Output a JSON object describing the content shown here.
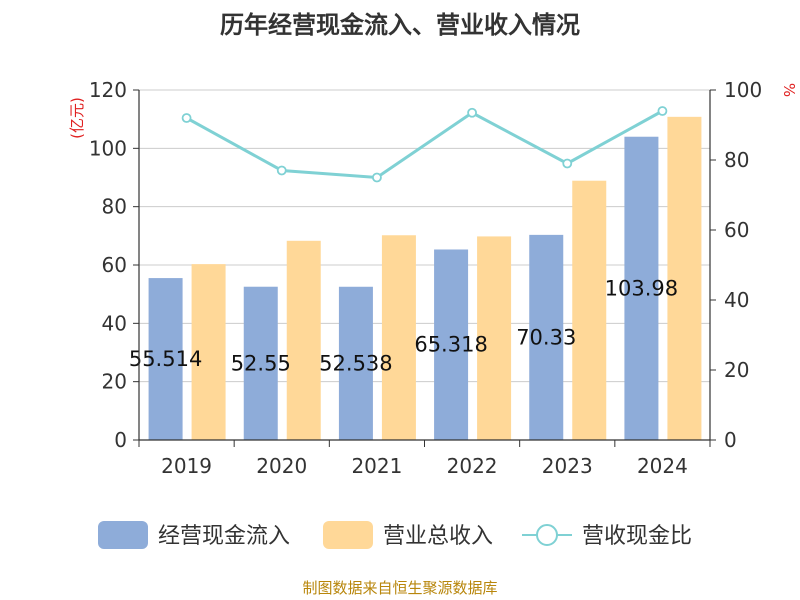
{
  "chart_data": {
    "type": "bar",
    "title": "历年经营现金流入、营业收入情况",
    "categories": [
      "2019",
      "2020",
      "2021",
      "2022",
      "2023",
      "2024"
    ],
    "series": [
      {
        "name": "经营现金流入",
        "kind": "bar",
        "axis": "left",
        "color": "#8eacd9",
        "values": [
          55.514,
          52.55,
          52.538,
          65.318,
          70.33,
          103.98
        ],
        "labels": [
          "55.514",
          "52.55",
          "52.538",
          "65.318",
          "70.33",
          "103.98"
        ]
      },
      {
        "name": "营业总收入",
        "kind": "bar",
        "axis": "left",
        "color": "#ffd898",
        "values": [
          60.3,
          68.3,
          70.2,
          69.8,
          88.9,
          110.8
        ]
      },
      {
        "name": "营收现金比",
        "kind": "line",
        "axis": "right",
        "color": "#7fd1d4",
        "values": [
          92,
          77,
          75,
          93.5,
          79,
          94
        ]
      }
    ],
    "y_left": {
      "label": "(亿元)",
      "min": 0,
      "max": 120,
      "ticks": [
        0,
        20,
        40,
        60,
        80,
        100,
        120
      ]
    },
    "y_right": {
      "label": "%",
      "min": 0,
      "max": 100,
      "ticks": [
        0,
        20,
        40,
        60,
        80,
        100
      ]
    },
    "grid": true,
    "legend_position": "bottom"
  },
  "source_note": "制图数据来自恒生聚源数据库",
  "colors": {
    "title": "#333333",
    "axis_label": "#e02020",
    "source": "#b8860b",
    "grid": "#cccccc",
    "axis": "#333333"
  }
}
